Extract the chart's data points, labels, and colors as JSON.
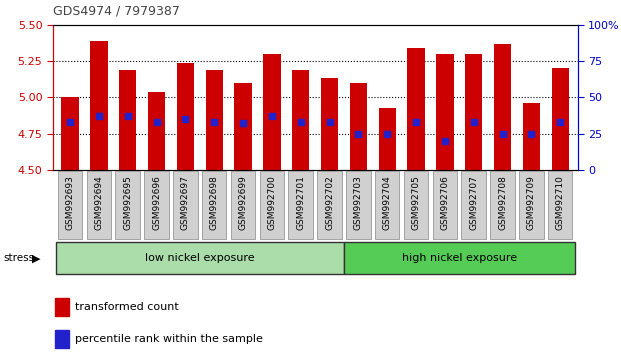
{
  "title": "GDS4974 / 7979387",
  "samples": [
    "GSM992693",
    "GSM992694",
    "GSM992695",
    "GSM992696",
    "GSM992697",
    "GSM992698",
    "GSM992699",
    "GSM992700",
    "GSM992701",
    "GSM992702",
    "GSM992703",
    "GSM992704",
    "GSM992705",
    "GSM992706",
    "GSM992707",
    "GSM992708",
    "GSM992709",
    "GSM992710"
  ],
  "red_values": [
    5.0,
    5.39,
    5.19,
    5.04,
    5.24,
    5.19,
    5.1,
    5.3,
    5.19,
    5.13,
    5.1,
    4.93,
    5.34,
    5.3,
    5.3,
    5.37,
    4.96,
    5.2
  ],
  "blue_values_pct": [
    33,
    37,
    37,
    33,
    35,
    33,
    32,
    37,
    33,
    33,
    25,
    25,
    33,
    20,
    33,
    25,
    25,
    33
  ],
  "base": 4.5,
  "ylim_left": [
    4.5,
    5.5
  ],
  "ylim_right": [
    0,
    100
  ],
  "yticks_left": [
    4.5,
    4.75,
    5.0,
    5.25,
    5.5
  ],
  "yticks_right": [
    0,
    25,
    50,
    75,
    100
  ],
  "grid_values": [
    4.75,
    5.0,
    5.25
  ],
  "bar_color": "#CC0000",
  "blue_color": "#2222CC",
  "plot_bg_color": "#FFFFFF",
  "tick_bg_color": "#D0D0D0",
  "group1_label": "low nickel exposure",
  "group2_label": "high nickel exposure",
  "group1_color": "#AADDAA",
  "group2_color": "#55CC55",
  "group1_count": 10,
  "group2_count": 8,
  "stress_label": "stress",
  "legend1": "transformed count",
  "legend2": "percentile rank within the sample",
  "left_axis_color": "#CC0000",
  "right_axis_color": "#0000CC",
  "title_color": "#444444"
}
